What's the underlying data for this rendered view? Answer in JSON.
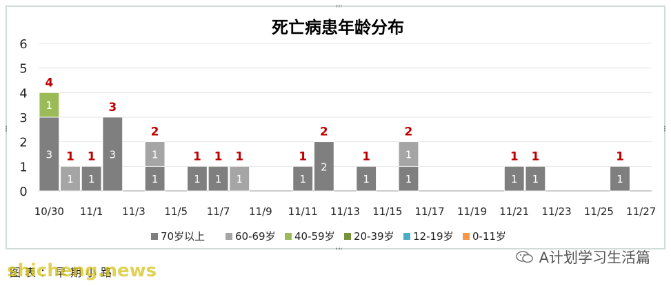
{
  "chart_data": {
    "type": "bar",
    "stacked": true,
    "title": "死亡病患年龄分布",
    "ylim": [
      0,
      6
    ],
    "yticks": [
      0,
      1,
      2,
      3,
      4,
      5,
      6
    ],
    "grid": true,
    "legend_position": "bottom",
    "dates": [
      "10/30",
      "10/31",
      "11/1",
      "11/2",
      "11/3",
      "11/4",
      "11/5",
      "11/6",
      "11/7",
      "11/8",
      "11/9",
      "11/10",
      "11/11",
      "11/12",
      "11/13",
      "11/14",
      "11/15",
      "11/16",
      "11/17",
      "11/18",
      "11/19",
      "11/20",
      "11/21",
      "11/22",
      "11/23",
      "11/24",
      "11/25",
      "11/26",
      "11/27"
    ],
    "xtick_labels": [
      "10/30",
      "11/1",
      "11/3",
      "11/5",
      "11/7",
      "11/9",
      "11/11",
      "11/13",
      "11/15",
      "11/17",
      "11/19",
      "11/21",
      "11/23",
      "11/25",
      "11/27"
    ],
    "series": [
      {
        "name": "70岁以上",
        "color": "#7f7f7f",
        "values": [
          3,
          0,
          1,
          3,
          0,
          1,
          0,
          1,
          1,
          0,
          0,
          0,
          1,
          2,
          0,
          1,
          0,
          1,
          0,
          0,
          0,
          0,
          1,
          1,
          0,
          0,
          0,
          1,
          0
        ]
      },
      {
        "name": "60-69岁",
        "color": "#a5a5a5",
        "values": [
          0,
          1,
          0,
          0,
          0,
          1,
          0,
          0,
          0,
          1,
          0,
          0,
          0,
          0,
          0,
          0,
          0,
          1,
          0,
          0,
          0,
          0,
          0,
          0,
          0,
          0,
          0,
          0,
          0
        ]
      },
      {
        "name": "40-59岁",
        "color": "#9bbb59",
        "values": [
          1,
          0,
          0,
          0,
          0,
          0,
          0,
          0,
          0,
          0,
          0,
          0,
          0,
          0,
          0,
          0,
          0,
          0,
          0,
          0,
          0,
          0,
          0,
          0,
          0,
          0,
          0,
          0,
          0
        ]
      },
      {
        "name": "20-39岁",
        "color": "#77933c",
        "values": [
          0,
          0,
          0,
          0,
          0,
          0,
          0,
          0,
          0,
          0,
          0,
          0,
          0,
          0,
          0,
          0,
          0,
          0,
          0,
          0,
          0,
          0,
          0,
          0,
          0,
          0,
          0,
          0,
          0
        ]
      },
      {
        "name": "12-19岁",
        "color": "#4bacc6",
        "values": [
          0,
          0,
          0,
          0,
          0,
          0,
          0,
          0,
          0,
          0,
          0,
          0,
          0,
          0,
          0,
          0,
          0,
          0,
          0,
          0,
          0,
          0,
          0,
          0,
          0,
          0,
          0,
          0,
          0
        ]
      },
      {
        "name": "0-11岁",
        "color": "#f79646",
        "values": [
          0,
          0,
          0,
          0,
          0,
          0,
          0,
          0,
          0,
          0,
          0,
          0,
          0,
          0,
          0,
          0,
          0,
          0,
          0,
          0,
          0,
          0,
          0,
          0,
          0,
          0,
          0,
          0,
          0
        ]
      }
    ],
    "totals": [
      4,
      1,
      1,
      3,
      0,
      2,
      0,
      1,
      1,
      1,
      0,
      0,
      1,
      2,
      0,
      1,
      0,
      2,
      0,
      0,
      0,
      0,
      1,
      1,
      0,
      0,
      0,
      1,
      0
    ],
    "total_label_color": "#c00000"
  },
  "footer": {
    "caption": "图表：早期小路",
    "watermark": "shicheng.news"
  },
  "brand": {
    "name": "A计划学习生活篇"
  }
}
